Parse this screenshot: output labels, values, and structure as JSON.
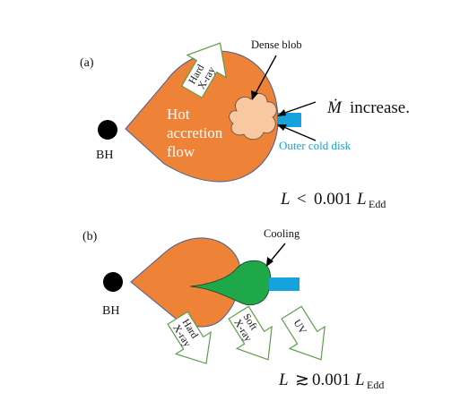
{
  "panel_a": {
    "label": "(a)",
    "bh_label": "BH",
    "flow_label_lines": [
      "Hot",
      "accretion",
      "flow"
    ],
    "hard_xray_lines": [
      "Hard",
      "X-ray"
    ],
    "dense_blob_label": "Dense blob",
    "mdot_symbol": "Ṁ",
    "mdot_text": "increase.",
    "outer_disk_label": "Outer cold disk",
    "luminosity": {
      "lhs": "L",
      "relation": "<",
      "value": "0.001",
      "L": "L",
      "sub": "Edd"
    }
  },
  "panel_b": {
    "label": "(b)",
    "bh_label": "BH",
    "cooling_label": "Cooling",
    "hard_xray_lines": [
      "Hard",
      "X-ray"
    ],
    "soft_xray_lines": [
      "Soft",
      "X-ray"
    ],
    "uv_label": "UV",
    "luminosity": {
      "lhs": "L",
      "relation": "≳",
      "value": "0.001",
      "L": "L",
      "sub": "Edd"
    }
  },
  "colors": {
    "flow_orange": "#EE8236",
    "flow_edge": "#4A5C8F",
    "blob_fill": "#F7C8A2",
    "cold_disk": "#14A3DC",
    "cooling_green": "#1FA84A",
    "arrow_stroke": "#5E9C48",
    "outer_disk_text": "#14A3DC"
  }
}
